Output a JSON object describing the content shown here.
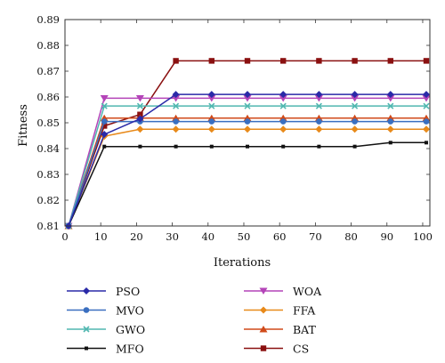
{
  "chart_data": {
    "type": "line",
    "title": "",
    "xlabel": "Iterations",
    "ylabel": "Fitness",
    "xlim": [
      0,
      102
    ],
    "ylim": [
      0.81,
      0.89
    ],
    "x_ticks": [
      0,
      10,
      20,
      30,
      40,
      50,
      60,
      70,
      80,
      90,
      100
    ],
    "y_ticks": [
      0.81,
      0.82,
      0.83,
      0.84,
      0.85,
      0.86,
      0.87,
      0.88,
      0.89
    ],
    "y_tick_labels": [
      "0.81",
      "0.82",
      "0.83",
      "0.84",
      "0.85",
      "0.86",
      "0.87",
      "0.88",
      "0.89"
    ],
    "grid": false,
    "legend_position": "bottom",
    "x": [
      1,
      11,
      21,
      31,
      41,
      51,
      61,
      71,
      81,
      91,
      101
    ],
    "series": [
      {
        "name": "PSO",
        "color": "#2a2aa8",
        "marker": "diamond",
        "values": [
          0.81,
          0.8455,
          0.8515,
          0.861,
          0.861,
          0.861,
          0.861,
          0.861,
          0.861,
          0.861,
          0.861
        ]
      },
      {
        "name": "MVO",
        "color": "#3a6fc0",
        "marker": "circle",
        "values": [
          0.81,
          0.8505,
          0.8505,
          0.8505,
          0.8505,
          0.8505,
          0.8505,
          0.8505,
          0.8505,
          0.8505,
          0.8505
        ]
      },
      {
        "name": "GWO",
        "color": "#50b7b0",
        "marker": "x",
        "values": [
          0.81,
          0.8565,
          0.8565,
          0.8565,
          0.8565,
          0.8565,
          0.8565,
          0.8565,
          0.8565,
          0.8565,
          0.8565
        ]
      },
      {
        "name": "MFO",
        "color": "#111111",
        "marker": "square-small",
        "values": [
          0.81,
          0.8408,
          0.8408,
          0.8408,
          0.8408,
          0.8408,
          0.8408,
          0.8408,
          0.8408,
          0.8423,
          0.8423
        ]
      },
      {
        "name": "WOA",
        "color": "#b444b8",
        "marker": "triangle-down",
        "values": [
          0.81,
          0.8595,
          0.8595,
          0.8595,
          0.8595,
          0.8595,
          0.8595,
          0.8595,
          0.8595,
          0.8595,
          0.8595
        ]
      },
      {
        "name": "FFA",
        "color": "#e88a1a",
        "marker": "diamond",
        "values": [
          0.81,
          0.8448,
          0.8475,
          0.8475,
          0.8475,
          0.8475,
          0.8475,
          0.8475,
          0.8475,
          0.8475,
          0.8475
        ]
      },
      {
        "name": "BAT",
        "color": "#d04a1a",
        "marker": "triangle-up",
        "values": [
          0.81,
          0.8518,
          0.8518,
          0.8518,
          0.8518,
          0.8518,
          0.8518,
          0.8518,
          0.8518,
          0.8518,
          0.8518
        ]
      },
      {
        "name": "CS",
        "color": "#8a1010",
        "marker": "square",
        "values": [
          0.81,
          0.8488,
          0.8532,
          0.874,
          0.874,
          0.874,
          0.874,
          0.874,
          0.874,
          0.874,
          0.874
        ]
      }
    ]
  }
}
